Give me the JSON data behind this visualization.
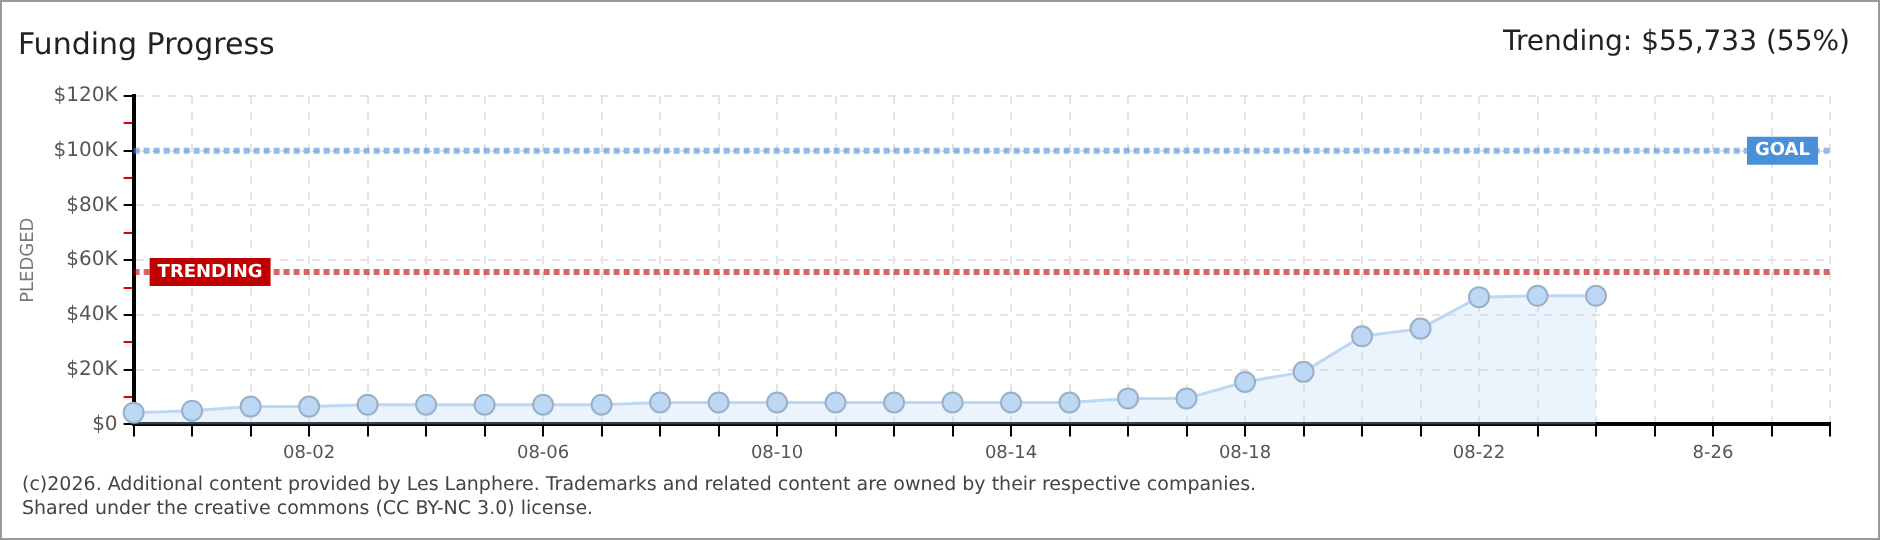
{
  "chart_data": {
    "type": "area",
    "title": "Funding Progress",
    "ylabel": "PLEDGED",
    "annotations": [
      "Trending: $55,733 (55%)",
      "(c)2026. Additional content provided by Les Lanphere. Trademarks and related content are owned by their respective companies.",
      "Shared under the creative commons (CC BY-NC 3.0) license."
    ],
    "categories": [
      null,
      null,
      null,
      "08-02",
      null,
      null,
      null,
      "08-06",
      null,
      null,
      null,
      "08-10",
      null,
      null,
      null,
      "08-14",
      null,
      null,
      null,
      "08-18",
      null,
      null,
      null,
      "08-22",
      null,
      null,
      null,
      "8-26",
      null,
      null
    ],
    "series": [
      {
        "color": "#bcd8f5",
        "values": [
          4300,
          5000,
          6500,
          6500,
          7200,
          7200,
          7200,
          7200,
          7200,
          8000,
          8000,
          8000,
          8000,
          8000,
          8000,
          8000,
          8000,
          9500,
          9500,
          15500,
          19200,
          32200,
          35000,
          46500,
          47000,
          47000,
          null,
          null,
          null,
          null
        ]
      }
    ],
    "ylim": [
      0,
      120000
    ],
    "yticks": [
      {
        "value": 0,
        "label": "$0"
      },
      {
        "value": 10000,
        "label": null
      },
      {
        "value": 20000,
        "label": "$20K"
      },
      {
        "value": 30000,
        "label": null
      },
      {
        "value": 40000,
        "label": "$40K"
      },
      {
        "value": 50000,
        "label": null
      },
      {
        "value": 60000,
        "label": "$60K"
      },
      {
        "value": 70000,
        "label": null
      },
      {
        "value": 80000,
        "label": "$80K"
      },
      {
        "value": 90000,
        "label": null
      },
      {
        "value": 100000,
        "label": "$100K"
      },
      {
        "value": 110000,
        "label": null
      },
      {
        "value": 120000,
        "label": "$120K"
      }
    ],
    "ref_lines": [
      {
        "axis": "y",
        "value": 100000,
        "label": "GOAL",
        "color": "#4a90d9",
        "line_style": "dotted"
      },
      {
        "axis": "y",
        "value": 55733,
        "label": "TRENDING",
        "color": "#c00000",
        "line_style": "dotted"
      }
    ],
    "grid": true,
    "legend": false,
    "marker": "circle",
    "line_style": "solid"
  }
}
